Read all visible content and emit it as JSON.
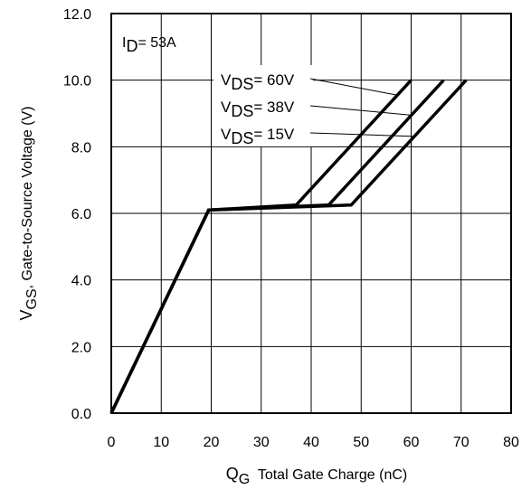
{
  "chart_data": {
    "type": "line",
    "xlabel": {
      "main": "Q",
      "sub": "G",
      "rest": "  Total Gate Charge (nC)"
    },
    "ylabel": {
      "main": "V",
      "sub": "GS",
      "rest": ", Gate-to-Source Voltage (V)"
    },
    "xlim": [
      0,
      80
    ],
    "ylim": [
      0,
      12
    ],
    "xticks": [
      "0",
      "10",
      "20",
      "30",
      "40",
      "50",
      "60",
      "70",
      "80"
    ],
    "yticks": [
      "0.0",
      "2.0",
      "4.0",
      "6.0",
      "8.0",
      "10.0",
      "12.0"
    ],
    "grid": true,
    "condition": {
      "main": "I",
      "sub": "D",
      "rest": "= 53A"
    },
    "series": [
      {
        "name": "VDS= 60V",
        "label": {
          "main": "V",
          "sub": "DS",
          "rest": "= 60V"
        },
        "points": [
          [
            0,
            0
          ],
          [
            19.5,
            6.1
          ],
          [
            37,
            6.25
          ],
          [
            60,
            10.0
          ]
        ]
      },
      {
        "name": "VDS= 38V",
        "label": {
          "main": "V",
          "sub": "DS",
          "rest": "= 38V"
        },
        "points": [
          [
            0,
            0
          ],
          [
            19.5,
            6.1
          ],
          [
            43.5,
            6.25
          ],
          [
            66.5,
            10.0
          ]
        ]
      },
      {
        "name": "VDS= 15V",
        "label": {
          "main": "V",
          "sub": "DS",
          "rest": "= 15V"
        },
        "points": [
          [
            0,
            0
          ],
          [
            19.5,
            6.1
          ],
          [
            48,
            6.25
          ],
          [
            71,
            10.0
          ]
        ]
      }
    ]
  }
}
